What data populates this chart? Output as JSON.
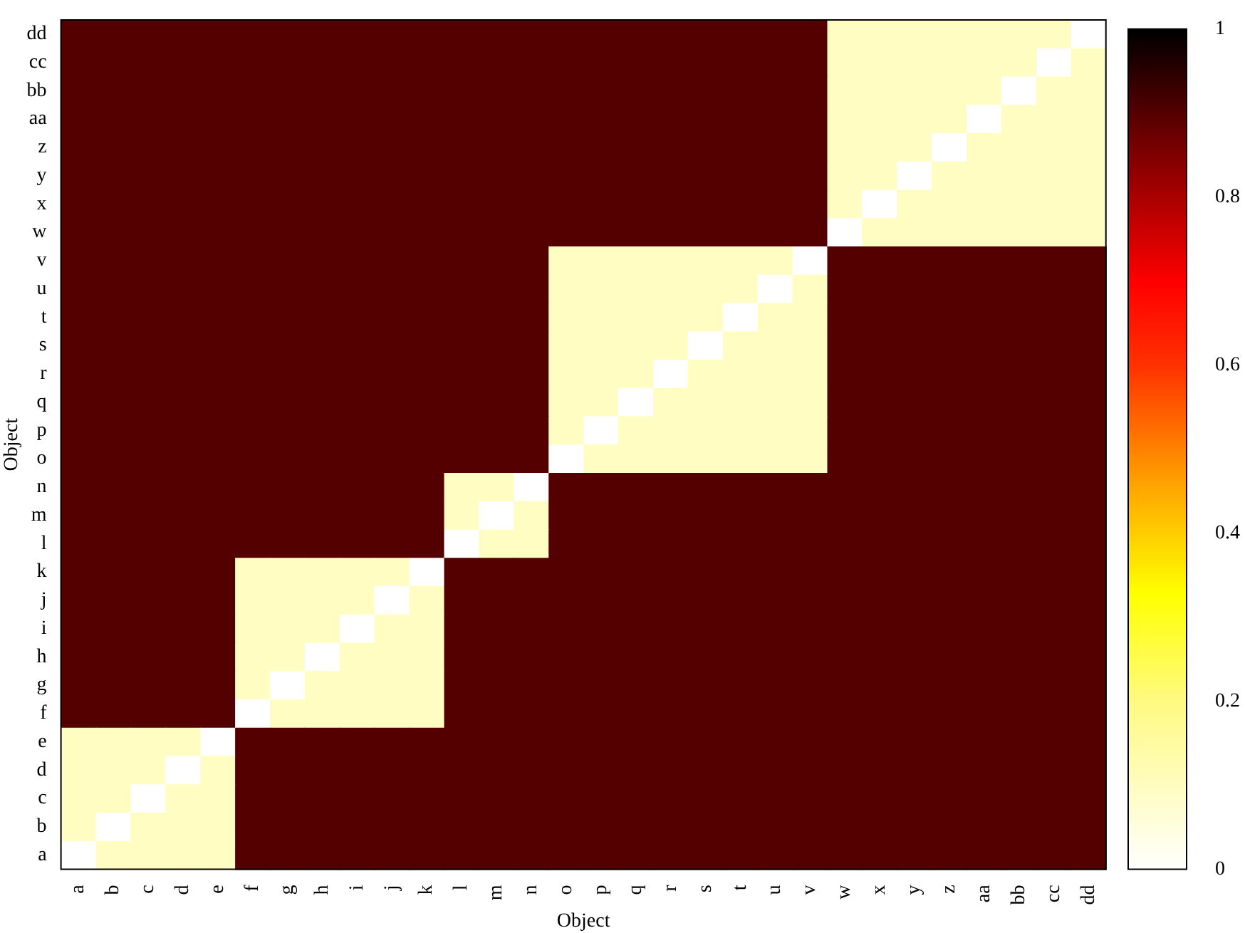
{
  "chart_data": {
    "type": "heatmap",
    "xlabel": "Object",
    "ylabel": "Object",
    "categories": [
      "a",
      "b",
      "c",
      "d",
      "e",
      "f",
      "g",
      "h",
      "i",
      "j",
      "k",
      "l",
      "m",
      "n",
      "o",
      "p",
      "q",
      "r",
      "s",
      "t",
      "u",
      "v",
      "w",
      "x",
      "y",
      "z",
      "aa",
      "bb",
      "cc",
      "dd"
    ],
    "y_categories": [
      "dd",
      "cc",
      "bb",
      "aa",
      "z",
      "y",
      "x",
      "w",
      "v",
      "u",
      "t",
      "s",
      "r",
      "q",
      "p",
      "o",
      "n",
      "m",
      "l",
      "k",
      "j",
      "i",
      "h",
      "g",
      "f",
      "e",
      "d",
      "c",
      "b",
      "a"
    ],
    "cells": [
      [
        0.9,
        0.9,
        0.9,
        0.9,
        0.9,
        0.9,
        0.9,
        0.9,
        0.9,
        0.9,
        0.9,
        0.9,
        0.9,
        0.9,
        0.9,
        0.9,
        0.9,
        0.9,
        0.9,
        0.9,
        0.9,
        0.9,
        0.1,
        0.1,
        0.1,
        0.1,
        0.1,
        0.1,
        0.1,
        0
      ],
      [
        0.9,
        0.9,
        0.9,
        0.9,
        0.9,
        0.9,
        0.9,
        0.9,
        0.9,
        0.9,
        0.9,
        0.9,
        0.9,
        0.9,
        0.9,
        0.9,
        0.9,
        0.9,
        0.9,
        0.9,
        0.9,
        0.9,
        0.1,
        0.1,
        0.1,
        0.1,
        0.1,
        0.1,
        0,
        0.1
      ],
      [
        0.9,
        0.9,
        0.9,
        0.9,
        0.9,
        0.9,
        0.9,
        0.9,
        0.9,
        0.9,
        0.9,
        0.9,
        0.9,
        0.9,
        0.9,
        0.9,
        0.9,
        0.9,
        0.9,
        0.9,
        0.9,
        0.9,
        0.1,
        0.1,
        0.1,
        0.1,
        0.1,
        0,
        0.1,
        0.1
      ],
      [
        0.9,
        0.9,
        0.9,
        0.9,
        0.9,
        0.9,
        0.9,
        0.9,
        0.9,
        0.9,
        0.9,
        0.9,
        0.9,
        0.9,
        0.9,
        0.9,
        0.9,
        0.9,
        0.9,
        0.9,
        0.9,
        0.9,
        0.1,
        0.1,
        0.1,
        0.1,
        0,
        0.1,
        0.1,
        0.1
      ],
      [
        0.9,
        0.9,
        0.9,
        0.9,
        0.9,
        0.9,
        0.9,
        0.9,
        0.9,
        0.9,
        0.9,
        0.9,
        0.9,
        0.9,
        0.9,
        0.9,
        0.9,
        0.9,
        0.9,
        0.9,
        0.9,
        0.9,
        0.1,
        0.1,
        0.1,
        0,
        0.1,
        0.1,
        0.1,
        0.1
      ],
      [
        0.9,
        0.9,
        0.9,
        0.9,
        0.9,
        0.9,
        0.9,
        0.9,
        0.9,
        0.9,
        0.9,
        0.9,
        0.9,
        0.9,
        0.9,
        0.9,
        0.9,
        0.9,
        0.9,
        0.9,
        0.9,
        0.9,
        0.1,
        0.1,
        0,
        0.1,
        0.1,
        0.1,
        0.1,
        0.1
      ],
      [
        0.9,
        0.9,
        0.9,
        0.9,
        0.9,
        0.9,
        0.9,
        0.9,
        0.9,
        0.9,
        0.9,
        0.9,
        0.9,
        0.9,
        0.9,
        0.9,
        0.9,
        0.9,
        0.9,
        0.9,
        0.9,
        0.9,
        0.1,
        0,
        0.1,
        0.1,
        0.1,
        0.1,
        0.1,
        0.1
      ],
      [
        0.9,
        0.9,
        0.9,
        0.9,
        0.9,
        0.9,
        0.9,
        0.9,
        0.9,
        0.9,
        0.9,
        0.9,
        0.9,
        0.9,
        0.9,
        0.9,
        0.9,
        0.9,
        0.9,
        0.9,
        0.9,
        0.9,
        0,
        0.1,
        0.1,
        0.1,
        0.1,
        0.1,
        0.1,
        0.1
      ],
      [
        0.9,
        0.9,
        0.9,
        0.9,
        0.9,
        0.9,
        0.9,
        0.9,
        0.9,
        0.9,
        0.9,
        0.9,
        0.9,
        0.9,
        0.1,
        0.1,
        0.1,
        0.1,
        0.1,
        0.1,
        0.1,
        0,
        0.9,
        0.9,
        0.9,
        0.9,
        0.9,
        0.9,
        0.9,
        0.9
      ],
      [
        0.9,
        0.9,
        0.9,
        0.9,
        0.9,
        0.9,
        0.9,
        0.9,
        0.9,
        0.9,
        0.9,
        0.9,
        0.9,
        0.9,
        0.1,
        0.1,
        0.1,
        0.1,
        0.1,
        0.1,
        0,
        0.1,
        0.9,
        0.9,
        0.9,
        0.9,
        0.9,
        0.9,
        0.9,
        0.9
      ],
      [
        0.9,
        0.9,
        0.9,
        0.9,
        0.9,
        0.9,
        0.9,
        0.9,
        0.9,
        0.9,
        0.9,
        0.9,
        0.9,
        0.9,
        0.1,
        0.1,
        0.1,
        0.1,
        0.1,
        0,
        0.1,
        0.1,
        0.9,
        0.9,
        0.9,
        0.9,
        0.9,
        0.9,
        0.9,
        0.9
      ],
      [
        0.9,
        0.9,
        0.9,
        0.9,
        0.9,
        0.9,
        0.9,
        0.9,
        0.9,
        0.9,
        0.9,
        0.9,
        0.9,
        0.9,
        0.1,
        0.1,
        0.1,
        0.1,
        0,
        0.1,
        0.1,
        0.1,
        0.9,
        0.9,
        0.9,
        0.9,
        0.9,
        0.9,
        0.9,
        0.9
      ],
      [
        0.9,
        0.9,
        0.9,
        0.9,
        0.9,
        0.9,
        0.9,
        0.9,
        0.9,
        0.9,
        0.9,
        0.9,
        0.9,
        0.9,
        0.1,
        0.1,
        0.1,
        0,
        0.1,
        0.1,
        0.1,
        0.1,
        0.9,
        0.9,
        0.9,
        0.9,
        0.9,
        0.9,
        0.9,
        0.9
      ],
      [
        0.9,
        0.9,
        0.9,
        0.9,
        0.9,
        0.9,
        0.9,
        0.9,
        0.9,
        0.9,
        0.9,
        0.9,
        0.9,
        0.9,
        0.1,
        0.1,
        0,
        0.1,
        0.1,
        0.1,
        0.1,
        0.1,
        0.9,
        0.9,
        0.9,
        0.9,
        0.9,
        0.9,
        0.9,
        0.9
      ],
      [
        0.9,
        0.9,
        0.9,
        0.9,
        0.9,
        0.9,
        0.9,
        0.9,
        0.9,
        0.9,
        0.9,
        0.9,
        0.9,
        0.9,
        0.1,
        0,
        0.1,
        0.1,
        0.1,
        0.1,
        0.1,
        0.1,
        0.9,
        0.9,
        0.9,
        0.9,
        0.9,
        0.9,
        0.9,
        0.9
      ],
      [
        0.9,
        0.9,
        0.9,
        0.9,
        0.9,
        0.9,
        0.9,
        0.9,
        0.9,
        0.9,
        0.9,
        0.9,
        0.9,
        0.9,
        0,
        0.1,
        0.1,
        0.1,
        0.1,
        0.1,
        0.1,
        0.1,
        0.9,
        0.9,
        0.9,
        0.9,
        0.9,
        0.9,
        0.9,
        0.9
      ],
      [
        0.9,
        0.9,
        0.9,
        0.9,
        0.9,
        0.9,
        0.9,
        0.9,
        0.9,
        0.9,
        0.9,
        0.1,
        0.1,
        0,
        0.9,
        0.9,
        0.9,
        0.9,
        0.9,
        0.9,
        0.9,
        0.9,
        0.9,
        0.9,
        0.9,
        0.9,
        0.9,
        0.9,
        0.9,
        0.9
      ],
      [
        0.9,
        0.9,
        0.9,
        0.9,
        0.9,
        0.9,
        0.9,
        0.9,
        0.9,
        0.9,
        0.9,
        0.1,
        0,
        0.1,
        0.9,
        0.9,
        0.9,
        0.9,
        0.9,
        0.9,
        0.9,
        0.9,
        0.9,
        0.9,
        0.9,
        0.9,
        0.9,
        0.9,
        0.9,
        0.9
      ],
      [
        0.9,
        0.9,
        0.9,
        0.9,
        0.9,
        0.9,
        0.9,
        0.9,
        0.9,
        0.9,
        0.9,
        0,
        0.1,
        0.1,
        0.9,
        0.9,
        0.9,
        0.9,
        0.9,
        0.9,
        0.9,
        0.9,
        0.9,
        0.9,
        0.9,
        0.9,
        0.9,
        0.9,
        0.9,
        0.9
      ],
      [
        0.9,
        0.9,
        0.9,
        0.9,
        0.9,
        0.1,
        0.1,
        0.1,
        0.1,
        0.1,
        0,
        0.9,
        0.9,
        0.9,
        0.9,
        0.9,
        0.9,
        0.9,
        0.9,
        0.9,
        0.9,
        0.9,
        0.9,
        0.9,
        0.9,
        0.9,
        0.9,
        0.9,
        0.9,
        0.9
      ],
      [
        0.9,
        0.9,
        0.9,
        0.9,
        0.9,
        0.1,
        0.1,
        0.1,
        0.1,
        0,
        0.1,
        0.9,
        0.9,
        0.9,
        0.9,
        0.9,
        0.9,
        0.9,
        0.9,
        0.9,
        0.9,
        0.9,
        0.9,
        0.9,
        0.9,
        0.9,
        0.9,
        0.9,
        0.9,
        0.9
      ],
      [
        0.9,
        0.9,
        0.9,
        0.9,
        0.9,
        0.1,
        0.1,
        0.1,
        0,
        0.1,
        0.1,
        0.9,
        0.9,
        0.9,
        0.9,
        0.9,
        0.9,
        0.9,
        0.9,
        0.9,
        0.9,
        0.9,
        0.9,
        0.9,
        0.9,
        0.9,
        0.9,
        0.9,
        0.9,
        0.9
      ],
      [
        0.9,
        0.9,
        0.9,
        0.9,
        0.9,
        0.1,
        0.1,
        0,
        0.1,
        0.1,
        0.1,
        0.9,
        0.9,
        0.9,
        0.9,
        0.9,
        0.9,
        0.9,
        0.9,
        0.9,
        0.9,
        0.9,
        0.9,
        0.9,
        0.9,
        0.9,
        0.9,
        0.9,
        0.9,
        0.9
      ],
      [
        0.9,
        0.9,
        0.9,
        0.9,
        0.9,
        0.1,
        0,
        0.1,
        0.1,
        0.1,
        0.1,
        0.9,
        0.9,
        0.9,
        0.9,
        0.9,
        0.9,
        0.9,
        0.9,
        0.9,
        0.9,
        0.9,
        0.9,
        0.9,
        0.9,
        0.9,
        0.9,
        0.9,
        0.9,
        0.9
      ],
      [
        0.9,
        0.9,
        0.9,
        0.9,
        0.9,
        0,
        0.1,
        0.1,
        0.1,
        0.1,
        0.1,
        0.9,
        0.9,
        0.9,
        0.9,
        0.9,
        0.9,
        0.9,
        0.9,
        0.9,
        0.9,
        0.9,
        0.9,
        0.9,
        0.9,
        0.9,
        0.9,
        0.9,
        0.9,
        0.9
      ],
      [
        0.1,
        0.1,
        0.1,
        0.1,
        0,
        0.9,
        0.9,
        0.9,
        0.9,
        0.9,
        0.9,
        0.9,
        0.9,
        0.9,
        0.9,
        0.9,
        0.9,
        0.9,
        0.9,
        0.9,
        0.9,
        0.9,
        0.9,
        0.9,
        0.9,
        0.9,
        0.9,
        0.9,
        0.9,
        0.9
      ],
      [
        0.1,
        0.1,
        0.1,
        0,
        0.1,
        0.9,
        0.9,
        0.9,
        0.9,
        0.9,
        0.9,
        0.9,
        0.9,
        0.9,
        0.9,
        0.9,
        0.9,
        0.9,
        0.9,
        0.9,
        0.9,
        0.9,
        0.9,
        0.9,
        0.9,
        0.9,
        0.9,
        0.9,
        0.9,
        0.9
      ],
      [
        0.1,
        0.1,
        0,
        0.1,
        0.1,
        0.9,
        0.9,
        0.9,
        0.9,
        0.9,
        0.9,
        0.9,
        0.9,
        0.9,
        0.9,
        0.9,
        0.9,
        0.9,
        0.9,
        0.9,
        0.9,
        0.9,
        0.9,
        0.9,
        0.9,
        0.9,
        0.9,
        0.9,
        0.9,
        0.9
      ],
      [
        0.1,
        0,
        0.1,
        0.1,
        0.1,
        0.9,
        0.9,
        0.9,
        0.9,
        0.9,
        0.9,
        0.9,
        0.9,
        0.9,
        0.9,
        0.9,
        0.9,
        0.9,
        0.9,
        0.9,
        0.9,
        0.9,
        0.9,
        0.9,
        0.9,
        0.9,
        0.9,
        0.9,
        0.9,
        0.9
      ],
      [
        0,
        0.1,
        0.1,
        0.1,
        0.1,
        0.9,
        0.9,
        0.9,
        0.9,
        0.9,
        0.9,
        0.9,
        0.9,
        0.9,
        0.9,
        0.9,
        0.9,
        0.9,
        0.9,
        0.9,
        0.9,
        0.9,
        0.9,
        0.9,
        0.9,
        0.9,
        0.9,
        0.9,
        0.9,
        0.9
      ]
    ],
    "clim": [
      0,
      1
    ],
    "cticks": [
      0,
      0.2,
      0.4,
      0.6,
      0.8,
      1
    ]
  }
}
